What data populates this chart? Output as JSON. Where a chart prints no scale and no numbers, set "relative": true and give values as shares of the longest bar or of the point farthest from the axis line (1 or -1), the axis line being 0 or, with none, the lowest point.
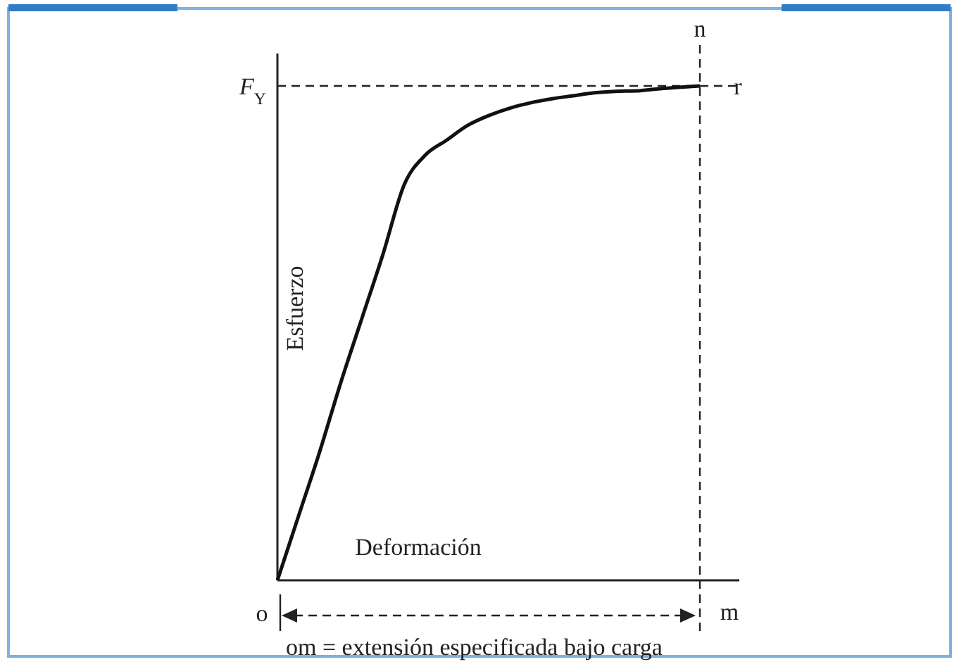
{
  "chart_data": {
    "type": "line",
    "relative": true,
    "xlabel": "Deformación",
    "ylabel": "Esfuerzo",
    "categories": [
      null,
      null,
      null,
      null,
      null,
      null,
      null,
      null,
      null,
      null,
      null,
      null,
      null,
      null,
      null,
      null,
      null,
      null,
      null,
      null,
      null
    ],
    "series": [
      {
        "color": "#111111",
        "values": [
          0,
          0.13,
          0.26,
          0.4,
          0.53,
          0.66,
          0.8,
          0.86,
          0.89,
          0.92,
          0.94,
          0.955,
          0.966,
          0.974,
          0.98,
          0.986,
          0.989,
          0.99,
          0.994,
          0.997,
          1
        ]
      }
    ],
    "ref_lines": [
      {
        "axis": "y",
        "value": 1,
        "label": "F$_{Y}$",
        "line_style": "dashed"
      },
      {
        "axis": "x",
        "label": "n",
        "line_style": "dashed"
      }
    ],
    "annotations": [
      "r",
      "o",
      "m",
      "om = extensión especificada bajo carga"
    ],
    "grid": false,
    "line_style": "solid"
  }
}
